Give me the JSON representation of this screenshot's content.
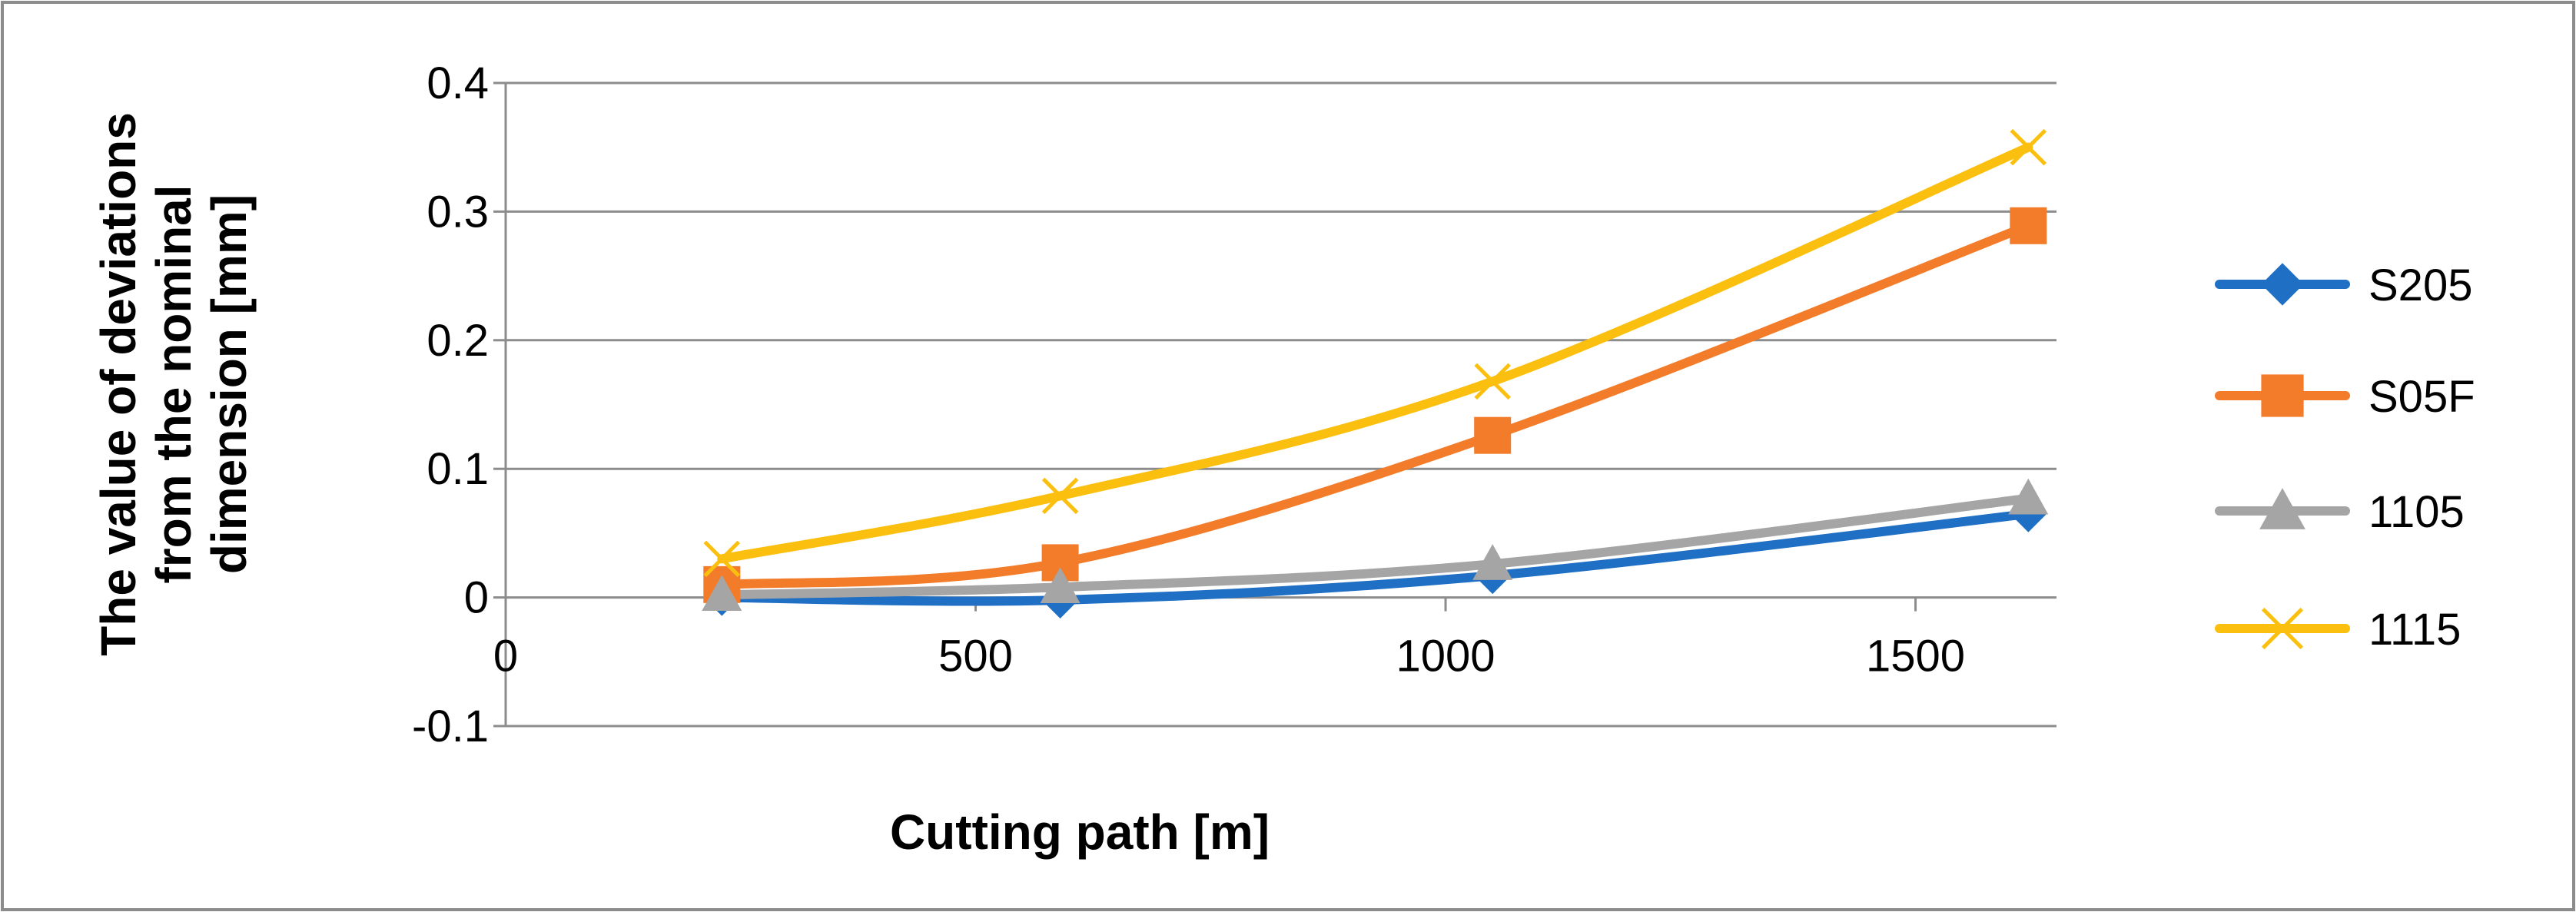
{
  "chart_data": {
    "type": "line",
    "title": "",
    "xlabel": "Cutting path [m]",
    "ylabel_lines": [
      "The value of deviations",
      "from the nominal",
      "dimension [mm]"
    ],
    "xlim": [
      0,
      1650
    ],
    "ylim": [
      -0.1,
      0.4
    ],
    "x_ticks": [
      0,
      500,
      1000,
      1500
    ],
    "x_tick_labels": [
      "0",
      "500",
      "1000",
      "1500"
    ],
    "y_ticks": [
      -0.1,
      0,
      0.1,
      0.2,
      0.3,
      0.4
    ],
    "y_tick_labels": [
      "-0.1",
      "0",
      "0.1",
      "0.2",
      "0.3",
      "0.4"
    ],
    "grid": "horizontal",
    "legend_position": "right",
    "x": [
      230,
      590,
      1050,
      1620
    ],
    "series": [
      {
        "name": "S205",
        "values": [
          0.0,
          -0.002,
          0.017,
          0.065
        ],
        "color": "#1f6fc4",
        "marker": "diamond"
      },
      {
        "name": "S05F",
        "values": [
          0.01,
          0.027,
          0.126,
          0.289
        ],
        "color": "#f37c2a",
        "marker": "square"
      },
      {
        "name": "1105",
        "values": [
          0.002,
          0.008,
          0.026,
          0.077
        ],
        "color": "#a5a5a5",
        "marker": "triangle"
      },
      {
        "name": "1115",
        "values": [
          0.03,
          0.079,
          0.168,
          0.35
        ],
        "color": "#fbc00f",
        "marker": "x"
      }
    ]
  }
}
